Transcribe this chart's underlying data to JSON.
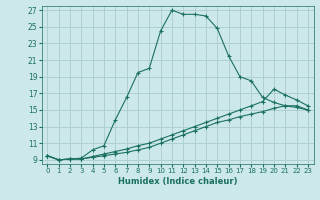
{
  "xlabel": "Humidex (Indice chaleur)",
  "background_color": "#cce8e8",
  "grid_color": "#b0d0d0",
  "line_color": "#1a7060",
  "xlim": [
    -0.5,
    23.5
  ],
  "ylim": [
    8.5,
    27.5
  ],
  "xticks": [
    0,
    1,
    2,
    3,
    4,
    5,
    6,
    7,
    8,
    9,
    10,
    11,
    12,
    13,
    14,
    15,
    16,
    17,
    18,
    19,
    20,
    21,
    22,
    23
  ],
  "yticks": [
    9,
    11,
    13,
    15,
    17,
    19,
    21,
    23,
    25,
    27
  ],
  "line1_x": [
    0,
    1,
    2,
    3,
    4,
    5,
    6,
    7,
    8,
    9,
    10,
    11,
    12,
    13,
    14,
    15,
    16,
    17,
    18,
    19,
    20,
    21,
    22,
    23
  ],
  "line1_y": [
    9.5,
    9.0,
    9.1,
    9.2,
    10.2,
    10.7,
    13.8,
    16.5,
    19.5,
    20.0,
    24.5,
    27.0,
    26.5,
    26.5,
    26.3,
    24.8,
    21.5,
    19.0,
    18.5,
    16.5,
    15.9,
    15.5,
    15.5,
    15.0
  ],
  "line2_x": [
    0,
    1,
    2,
    3,
    4,
    5,
    6,
    7,
    8,
    9,
    10,
    11,
    12,
    13,
    14,
    15,
    16,
    17,
    18,
    19,
    20,
    21,
    22,
    23
  ],
  "line2_y": [
    9.5,
    9.0,
    9.1,
    9.1,
    9.4,
    9.7,
    10.0,
    10.3,
    10.7,
    11.0,
    11.5,
    12.0,
    12.5,
    13.0,
    13.5,
    14.0,
    14.5,
    15.0,
    15.5,
    16.0,
    17.5,
    16.8,
    16.2,
    15.5
  ],
  "line3_x": [
    0,
    1,
    2,
    3,
    4,
    5,
    6,
    7,
    8,
    9,
    10,
    11,
    12,
    13,
    14,
    15,
    16,
    17,
    18,
    19,
    20,
    21,
    22,
    23
  ],
  "line3_y": [
    9.5,
    9.0,
    9.1,
    9.1,
    9.3,
    9.5,
    9.7,
    9.9,
    10.2,
    10.5,
    11.0,
    11.5,
    12.0,
    12.5,
    13.0,
    13.5,
    13.8,
    14.2,
    14.5,
    14.8,
    15.2,
    15.5,
    15.3,
    15.0
  ]
}
